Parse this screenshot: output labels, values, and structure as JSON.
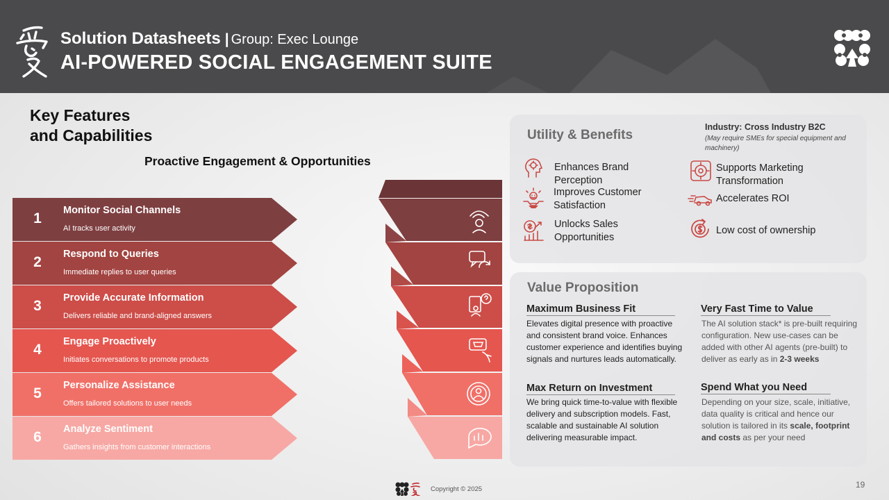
{
  "header": {
    "title": "Solution Datasheets",
    "separator": "|",
    "group": "Group: Exec Lounge",
    "subtitle": "AI-POWERED SOCIAL ENGAGEMENT SUITE"
  },
  "features": {
    "title_line1": "Key Features",
    "title_line2": "and Capabilities",
    "section_title": "Proactive Engagement & Opportunities",
    "steps": [
      {
        "num": "1",
        "title": "Monitor Social Channels",
        "desc": "AI tracks user activity",
        "color": "#7e3f41",
        "icon": "monitor-eye-icon"
      },
      {
        "num": "2",
        "title": "Respond to Queries",
        "desc": "Immediate replies to user queries",
        "color": "#a24441",
        "icon": "chat-refresh-icon"
      },
      {
        "num": "3",
        "title": "Provide Accurate Information",
        "desc": "Delivers reliable and brand-aligned answers",
        "color": "#cd4d48",
        "icon": "question-board-icon"
      },
      {
        "num": "4",
        "title": "Engage Proactively",
        "desc": "Initiates conversations to promote products",
        "color": "#e5564f",
        "icon": "shopping-cart-chat-icon"
      },
      {
        "num": "5",
        "title": "Personalize Assistance",
        "desc": "Offers tailored solutions to user needs",
        "color": "#f07068",
        "icon": "user-cycle-icon"
      },
      {
        "num": "6",
        "title": "Analyze Sentiment",
        "desc": "Gathers insights from customer interactions",
        "color": "#f7a8a4",
        "icon": "chat-chart-icon"
      }
    ]
  },
  "utility": {
    "title": "Utility & Benefits",
    "industry": "Industry: Cross Industry B2C",
    "industry_note": "(May require SMEs for special equipment and machinery)",
    "benefits_left": [
      {
        "label": "Enhances Brand Perception",
        "icon": "brand-head-icon"
      },
      {
        "label": "Improves Customer Satisfaction",
        "icon": "customer-satisfaction-icon"
      },
      {
        "label": "Unlocks Sales Opportunities",
        "icon": "sales-growth-icon"
      }
    ],
    "benefits_right": [
      {
        "label": "Supports Marketing Transformation",
        "icon": "marketing-brain-icon"
      },
      {
        "label": "Accelerates ROI",
        "icon": "fast-car-icon"
      },
      {
        "label": "Low cost of ownership",
        "icon": "dollar-cycle-icon"
      }
    ]
  },
  "value": {
    "title": "Value Proposition",
    "items": [
      {
        "heading": "Maximum Business Fit",
        "text": "Elevates digital presence with proactive and consistent brand voice. Enhances customer experience and identifies buying signals and nurtures leads automatically."
      },
      {
        "heading": "Very Fast Time to Value",
        "text_pre": "The AI solution stack* is pre-built requiring configuration. New use-cases can be added with other AI agents (pre-built) to deliver as early as in ",
        "text_bold": "2-3 weeks"
      },
      {
        "heading": "Max Return on Investment",
        "text": "We bring quick time-to-value with flexible delivery and subscription models. Fast, scalable and sustainable AI solution delivering measurable impact."
      },
      {
        "heading": "Spend What you Need",
        "text_pre": "Depending on your size, scale, initiative, data quality is critical and hence our solution is tailored in its ",
        "text_bold": "scale, footprint and costs",
        "text_post": " as per your need"
      }
    ]
  },
  "footer": {
    "copyright": "Copyright © 2025",
    "page": "19"
  },
  "colors": {
    "header_bg": "#4a4a4c",
    "accent_red": "#c94a45",
    "card_bg": "#e4e4e6"
  }
}
